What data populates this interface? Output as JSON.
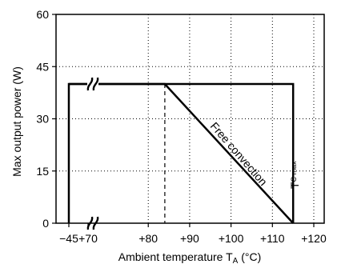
{
  "chart_data": {
    "type": "line",
    "xlabel": "Ambient temperature T",
    "xlabel_sub": "A",
    "xlabel_unit": " (°C)",
    "ylabel": "Max output power (W)",
    "x_ticks": [
      {
        "value": -45,
        "label": "−45"
      },
      {
        "value": 70,
        "label": "+70"
      },
      {
        "value": 80,
        "label": "+80"
      },
      {
        "value": 90,
        "label": "+90"
      },
      {
        "value": 100,
        "label": "+100"
      },
      {
        "value": 110,
        "label": "+110"
      },
      {
        "value": 120,
        "label": "+120"
      }
    ],
    "y_ticks": [
      {
        "value": 0,
        "label": "0"
      },
      {
        "value": 15,
        "label": "15"
      },
      {
        "value": 30,
        "label": "30"
      },
      {
        "value": 45,
        "label": "45"
      },
      {
        "value": 60,
        "label": "60"
      }
    ],
    "xlim_broken": [
      -45,
      70
    ],
    "xlim": [
      55,
      120
    ],
    "ylim": [
      0,
      60
    ],
    "axis_break": true,
    "grid": "dotted",
    "series": [
      {
        "name": "Free convection",
        "x": [
          -45,
          84,
          115
        ],
        "y": [
          40,
          40,
          0
        ]
      },
      {
        "name": "",
        "x": [
          -45,
          -45,
          115,
          115
        ],
        "y": [
          0,
          40,
          40,
          0
        ]
      }
    ],
    "reference_lines": [
      {
        "x": 84,
        "y_from": 0,
        "y_to": 40,
        "style": "dashed"
      }
    ],
    "annotations": [
      {
        "text": "Free convection"
      },
      {
        "text": "T",
        "sub": "C max"
      }
    ]
  }
}
